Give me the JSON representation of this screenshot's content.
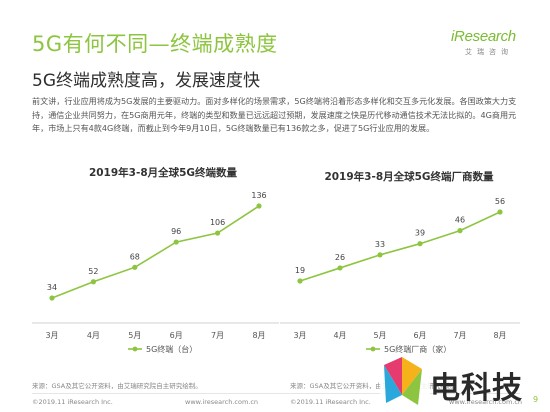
{
  "title": "5G有何不同—终端成熟度",
  "subtitle": "5G终端成熟度高，发展速度快",
  "logo": {
    "text_i": "i",
    "text_rest": "Research",
    "sub": "艾瑞咨询"
  },
  "paragraph": "前文讲，行业应用将成为5G发展的主要驱动力。面对多样化的场景需求，5G终端将沿着形态多样化和交互多元化发展。各国政策大力支持，通信企业共同努力，在5G商用元年，终端的类型和数量已远远超过预期，发展速度之快是历代移动通信技术无法比拟的。4G商用元年，市场上只有4款4G终端，而截止到今年9月10日，5G终端数量已有136款之多，促进了5G行业应用的发展。",
  "chart_data": [
    {
      "type": "line",
      "title": "2019年3-8月全球5G终端数量",
      "categories": [
        "3月",
        "4月",
        "5月",
        "6月",
        "7月",
        "8月"
      ],
      "series": [
        {
          "name": "5G终端（台）",
          "values": [
            34,
            52,
            68,
            96,
            106,
            136
          ]
        }
      ],
      "ylim": [
        0,
        150
      ],
      "color": "#8dc540",
      "grid": false,
      "legend": "bottom"
    },
    {
      "type": "line",
      "title": "2019年3-8月全球5G终端厂商数量",
      "categories": [
        "3月",
        "4月",
        "5月",
        "6月",
        "7月",
        "8月"
      ],
      "series": [
        {
          "name": "5G终端厂商（家）",
          "values": [
            19,
            26,
            33,
            39,
            46,
            56
          ]
        }
      ],
      "ylim": [
        0,
        60
      ],
      "color": "#8dc540",
      "grid": false,
      "legend": "bottom"
    }
  ],
  "source": "来源：GSA及其它公开资料，由艾瑞研究院自主研究绘制。",
  "footer_left": "©2019.11 iResearch Inc.",
  "footer_right": "www.iresearch.com.cn",
  "page_number": "9",
  "watermark_text": "电科技"
}
